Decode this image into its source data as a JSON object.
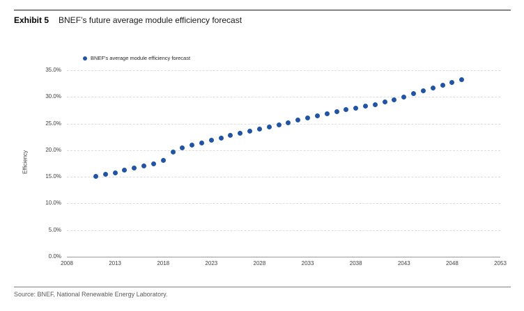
{
  "exhibit": {
    "label": "Exhibit 5",
    "title": "BNEF’s future average module efficiency forecast"
  },
  "source": "Source: BNEF, National Renewable Energy Laboratory.",
  "colors": {
    "marker": "#2155A4",
    "gridline": "#dcdcdc",
    "axis": "#999999",
    "rule_top": "#1a1a1a",
    "rule_bottom": "#7f7f7f",
    "tick_text": "#404040",
    "source_text": "#595959"
  },
  "chart_data": {
    "type": "scatter",
    "title": "BNEF’s future average module efficiency forecast",
    "xlabel": "",
    "ylabel": "Efficiency",
    "legend": [
      {
        "label": "BNEF's average module efficiency forecast",
        "color": "#2155A4"
      }
    ],
    "legend_position": "top-left",
    "grid": "horizontal-dashed",
    "xlim": [
      2008,
      2053
    ],
    "ylim_percent": [
      0,
      35
    ],
    "x_ticks": [
      2008,
      2013,
      2018,
      2023,
      2028,
      2033,
      2038,
      2043,
      2048,
      2053
    ],
    "y_ticks": [
      {
        "value": 0,
        "label": "0.0%"
      },
      {
        "value": 5,
        "label": "5.0%"
      },
      {
        "value": 10,
        "label": "10.0%"
      },
      {
        "value": 15,
        "label": "15.0%"
      },
      {
        "value": 20,
        "label": "20.0%"
      },
      {
        "value": 25,
        "label": "25.0%"
      },
      {
        "value": 30,
        "label": "30.0%"
      },
      {
        "value": 35,
        "label": "35.0%"
      }
    ],
    "series": [
      {
        "name": "BNEF's average module efficiency forecast",
        "x": [
          2011,
          2012,
          2013,
          2014,
          2015,
          2016,
          2017,
          2018,
          2019,
          2020,
          2021,
          2022,
          2023,
          2024,
          2025,
          2026,
          2027,
          2028,
          2029,
          2030,
          2031,
          2032,
          2033,
          2034,
          2035,
          2036,
          2037,
          2038,
          2039,
          2040,
          2041,
          2042,
          2043,
          2044,
          2045,
          2046,
          2047,
          2048,
          2049
        ],
        "y_percent": [
          15.1,
          15.5,
          15.8,
          16.2,
          16.6,
          17.1,
          17.5,
          18.1,
          19.7,
          20.4,
          20.9,
          21.4,
          21.9,
          22.3,
          22.8,
          23.2,
          23.6,
          24.0,
          24.4,
          24.8,
          25.2,
          25.6,
          26.0,
          26.4,
          26.8,
          27.2,
          27.6,
          27.9,
          28.3,
          28.6,
          29.0,
          29.4,
          30.0,
          30.6,
          31.1,
          31.7,
          32.2,
          32.7,
          33.3
        ]
      }
    ]
  }
}
